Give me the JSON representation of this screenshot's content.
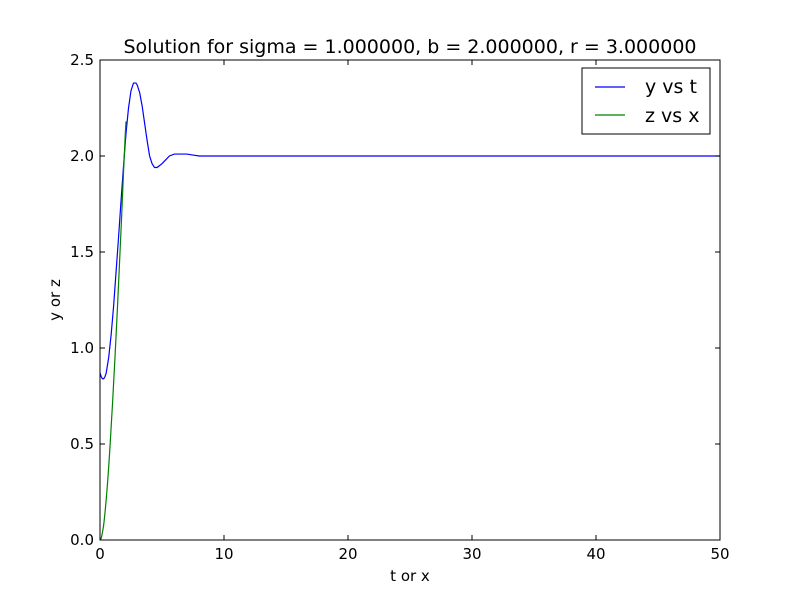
{
  "chart_data": {
    "type": "line",
    "title": "Solution for sigma = 1.000000, b = 2.000000, r = 3.000000",
    "xlabel": "t or x",
    "ylabel": "y or z",
    "xlim": [
      0,
      50
    ],
    "ylim": [
      0,
      2.5
    ],
    "xticks": [
      0,
      10,
      20,
      30,
      40,
      50
    ],
    "xtick_labels": [
      "0",
      "10",
      "20",
      "30",
      "40",
      "50"
    ],
    "yticks": [
      0,
      0.5,
      1.0,
      1.5,
      2.0,
      2.5
    ],
    "ytick_labels": [
      "0.0",
      "0.5",
      "1.0",
      "1.5",
      "2.0",
      "2.5"
    ],
    "grid": false,
    "legend_position": "top-right",
    "series": [
      {
        "name": "y vs t",
        "color": "#0000ff",
        "x": [
          0,
          0.1,
          0.2,
          0.3,
          0.4,
          0.5,
          0.7,
          0.9,
          1.1,
          1.3,
          1.5,
          1.7,
          1.9,
          2.1,
          2.3,
          2.5,
          2.7,
          2.9,
          3.0,
          3.2,
          3.4,
          3.6,
          3.8,
          4.0,
          4.2,
          4.4,
          4.6,
          4.8,
          5.0,
          5.3,
          5.6,
          6.0,
          6.5,
          7.0,
          7.5,
          8.0,
          8.5,
          9.0,
          10,
          12,
          15,
          20,
          25,
          30,
          35,
          40,
          45,
          50
        ],
        "y": [
          0.87,
          0.85,
          0.84,
          0.84,
          0.85,
          0.87,
          0.95,
          1.07,
          1.22,
          1.4,
          1.58,
          1.77,
          1.95,
          2.12,
          2.25,
          2.34,
          2.38,
          2.38,
          2.37,
          2.33,
          2.26,
          2.17,
          2.08,
          2.0,
          1.96,
          1.94,
          1.94,
          1.95,
          1.96,
          1.98,
          2.0,
          2.01,
          2.01,
          2.01,
          2.005,
          2.0,
          2.0,
          2.0,
          2.0,
          2.0,
          2.0,
          2.0,
          2.0,
          2.0,
          2.0,
          2.0,
          2.0,
          2.0
        ]
      },
      {
        "name": "z vs x",
        "color": "#008000",
        "x": [
          0,
          0.1,
          0.2,
          0.3,
          0.4,
          0.5,
          0.6,
          0.7,
          0.8,
          0.9,
          1.0,
          1.1,
          1.2,
          1.3,
          1.4,
          1.5,
          1.6,
          1.7,
          1.8,
          1.9,
          2.0,
          2.05,
          2.1
        ],
        "y": [
          0.0,
          0.01,
          0.04,
          0.08,
          0.14,
          0.21,
          0.29,
          0.38,
          0.48,
          0.59,
          0.7,
          0.82,
          0.94,
          1.07,
          1.2,
          1.34,
          1.48,
          1.62,
          1.77,
          1.92,
          2.06,
          2.13,
          2.18
        ]
      }
    ]
  }
}
